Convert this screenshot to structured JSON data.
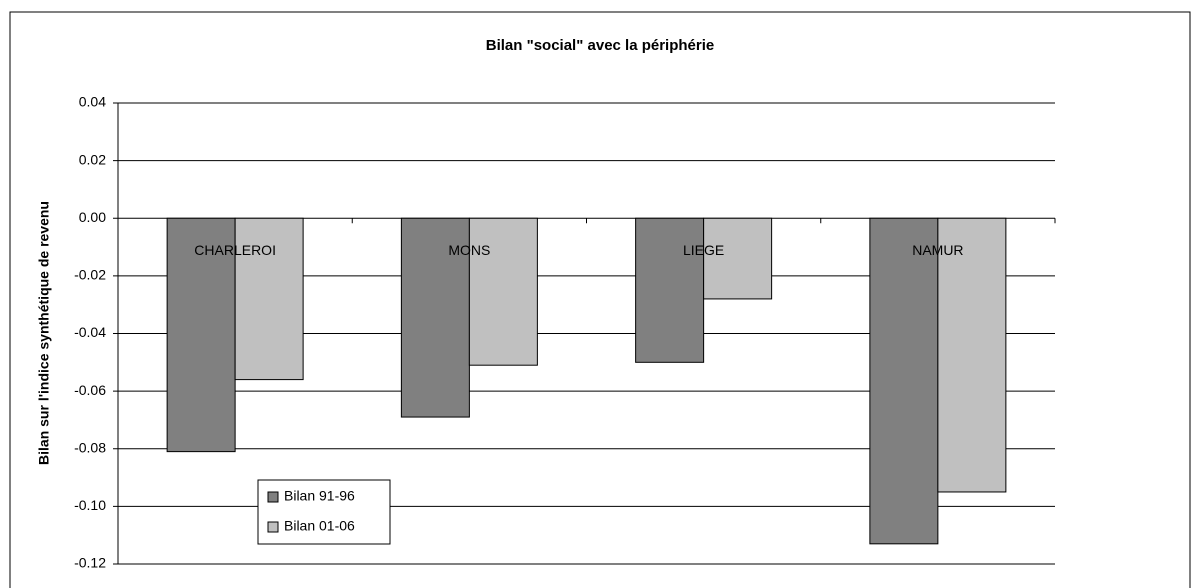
{
  "chart_data": {
    "type": "bar",
    "title": "Bilan \"social\" avec la périphérie",
    "y_label": "Bilan sur l'indice synthétique de revenu",
    "categories": [
      "CHARLEROI",
      "MONS",
      "LIEGE",
      "NAMUR"
    ],
    "series": [
      {
        "name": "Bilan 91-96",
        "color": "#808080",
        "values": [
          -0.081,
          -0.069,
          -0.05,
          -0.113
        ]
      },
      {
        "name": "Bilan 01-06",
        "color": "#c0c0c0",
        "values": [
          -0.056,
          -0.051,
          -0.028,
          -0.095
        ]
      }
    ],
    "ylim": [
      -0.12,
      0.04
    ],
    "yticks": [
      -0.12,
      {
        "value": -0.1,
        "label": "-0.10"
      },
      -0.08,
      -0.06,
      -0.04,
      -0.02,
      {
        "value": 0,
        "label": "0.00"
      },
      0.02,
      0.04
    ],
    "grid": true,
    "legend": "lower left"
  }
}
